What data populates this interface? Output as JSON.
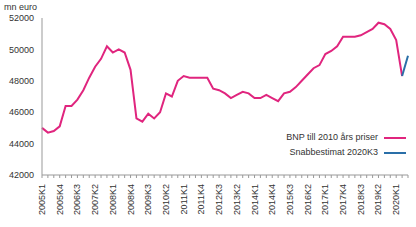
{
  "chart_data": {
    "type": "line",
    "y_label": "mn euro",
    "categories": [
      "2005K1",
      null,
      null,
      "2005K4",
      null,
      null,
      "2006K3",
      null,
      null,
      "2007K2",
      null,
      null,
      "2008K1",
      null,
      null,
      "2008K4",
      null,
      null,
      "2009K3",
      null,
      null,
      "2010K2",
      null,
      null,
      "2011K1",
      null,
      null,
      "2011K4",
      null,
      null,
      "2012K3",
      null,
      null,
      "2013K2",
      null,
      null,
      "2014K1",
      null,
      null,
      "2014K4",
      null,
      null,
      "2015K3",
      null,
      null,
      "2016K2",
      null,
      null,
      "2017K1",
      null,
      null,
      "2017K4",
      null,
      null,
      "2018K3",
      null,
      null,
      "2019K2",
      null,
      null,
      "2020K1",
      null,
      null
    ],
    "series": [
      {
        "name": "BNP till 2010 års priser",
        "color": "#e0257e",
        "values": [
          45000,
          44700,
          44800,
          45100,
          46400,
          46400,
          46800,
          47400,
          48200,
          48900,
          49400,
          50200,
          49800,
          50000,
          49800,
          48700,
          45600,
          45400,
          45900,
          45600,
          46000,
          47200,
          47000,
          48000,
          48300,
          48200,
          48200,
          48200,
          48200,
          47500,
          47400,
          47200,
          46900,
          47100,
          47300,
          47200,
          46900,
          46900,
          47100,
          46900,
          46700,
          47200,
          47300,
          47600,
          48000,
          48400,
          48800,
          49000,
          49700,
          49900,
          50200,
          50800,
          50800,
          50800,
          50900,
          51100,
          51300,
          51700,
          51600,
          51300,
          50600,
          48300,
          null
        ]
      },
      {
        "name": "Snabbestimat 2020K3",
        "color": "#2a6fa8",
        "values": [
          null,
          null,
          null,
          null,
          null,
          null,
          null,
          null,
          null,
          null,
          null,
          null,
          null,
          null,
          null,
          null,
          null,
          null,
          null,
          null,
          null,
          null,
          null,
          null,
          null,
          null,
          null,
          null,
          null,
          null,
          null,
          null,
          null,
          null,
          null,
          null,
          null,
          null,
          null,
          null,
          null,
          null,
          null,
          null,
          null,
          null,
          null,
          null,
          null,
          null,
          null,
          null,
          null,
          null,
          null,
          null,
          null,
          null,
          null,
          null,
          null,
          48300,
          49600
        ]
      }
    ],
    "ylim": [
      42000,
      52000
    ],
    "yticks": [
      42000,
      44000,
      46000,
      48000,
      50000,
      52000
    ],
    "grid": false,
    "legend": "bottom-right"
  }
}
